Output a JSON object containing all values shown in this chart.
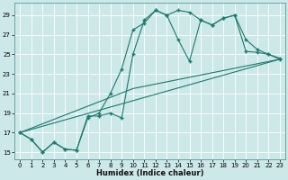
{
  "xlabel": "Humidex (Indice chaleur)",
  "bg_color": "#cde8e8",
  "grid_color": "#b8d8d8",
  "line_color": "#1a7a6e",
  "xlim": [
    -0.5,
    23.5
  ],
  "ylim": [
    14.3,
    30.3
  ],
  "xticks": [
    0,
    1,
    2,
    3,
    4,
    5,
    6,
    7,
    8,
    9,
    10,
    11,
    12,
    13,
    14,
    15,
    16,
    17,
    18,
    19,
    20,
    21,
    22,
    23
  ],
  "yticks": [
    15,
    17,
    19,
    21,
    23,
    25,
    27,
    29
  ],
  "line1_x": [
    0,
    1,
    2,
    3,
    4,
    5,
    6,
    7,
    8,
    9,
    10,
    11,
    12,
    13,
    14,
    15,
    16,
    17,
    18,
    19,
    20,
    21,
    22,
    23
  ],
  "line1_y": [
    17.0,
    16.3,
    15.0,
    16.0,
    15.3,
    15.2,
    18.5,
    19.0,
    21.0,
    23.5,
    27.5,
    28.2,
    29.5,
    29.0,
    29.5,
    29.3,
    28.5,
    28.0,
    28.7,
    29.0,
    25.3,
    25.2,
    25.0,
    24.6
  ],
  "line2_x": [
    0,
    1,
    2,
    3,
    4,
    5,
    6,
    7,
    8,
    9,
    10,
    11,
    12,
    13,
    14,
    15,
    16,
    17,
    18,
    19,
    20,
    21,
    22,
    23
  ],
  "line2_y": [
    17.0,
    16.3,
    15.0,
    16.0,
    15.3,
    15.2,
    18.7,
    18.7,
    19.0,
    18.5,
    25.0,
    28.5,
    29.5,
    29.0,
    26.5,
    24.3,
    28.5,
    28.0,
    28.7,
    29.0,
    26.5,
    25.5,
    25.0,
    24.5
  ],
  "line3_x": [
    0,
    10,
    23
  ],
  "line3_y": [
    17.0,
    21.5,
    24.5
  ],
  "line4_x": [
    0,
    23
  ],
  "line4_y": [
    17.0,
    24.5
  ]
}
